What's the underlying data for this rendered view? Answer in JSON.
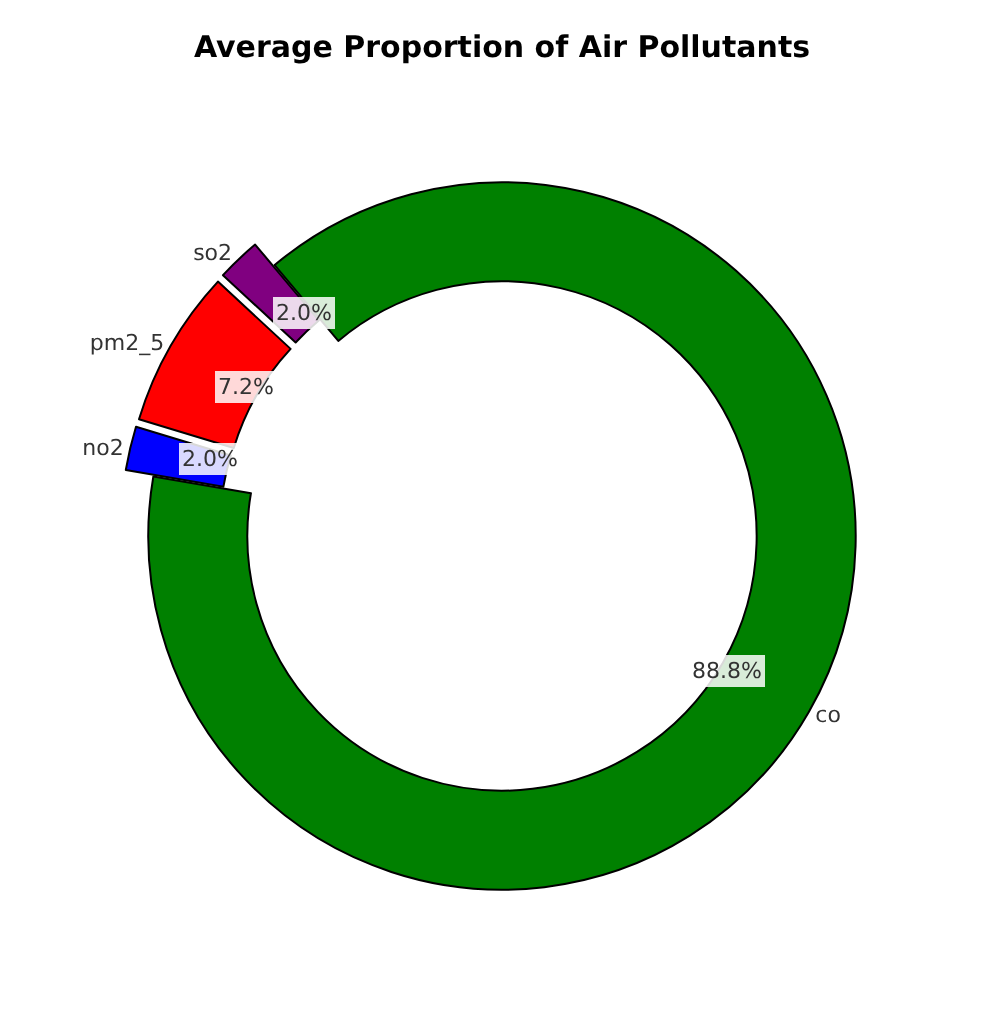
{
  "chart_data": {
    "type": "donut",
    "title": "Average Proportion of Air Pollutants",
    "categories": [
      "co",
      "no2",
      "pm2_5",
      "so2"
    ],
    "values": [
      88.8,
      2.0,
      7.2,
      2.0
    ],
    "value_labels": [
      "88.8%",
      "2.0%",
      "7.2%",
      "2.0%"
    ],
    "colors": [
      "#008000",
      "#0000ff",
      "#ff0000",
      "#800080"
    ],
    "legend": false
  }
}
